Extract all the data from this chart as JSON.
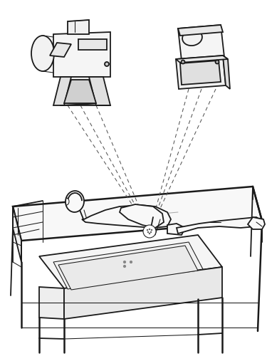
{
  "bg_color": "#ffffff",
  "line_color": "#1a1a1a",
  "dashed_color": "#555555",
  "fig_width": 3.75,
  "fig_height": 5.0,
  "dpi": 100,
  "lw_main": 1.3,
  "lw_thin": 0.75,
  "lw_thick": 1.8,
  "lw_ultra": 2.2
}
